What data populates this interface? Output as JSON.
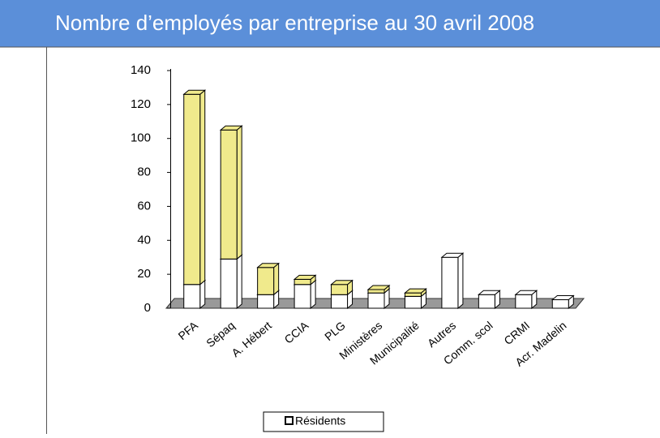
{
  "chart_data": {
    "type": "bar",
    "title": "Nombre d’employés par entreprise au 30 avril 2008",
    "categories": [
      "PFA",
      "Sépaq",
      "A. Hébert",
      "CCIA",
      "PLG",
      "Ministères",
      "Municipalité",
      "Autres",
      "Comm. scol",
      "CRMI",
      "Acr. Madelin"
    ],
    "series": [
      {
        "name": "Résidents",
        "color": "#ffffff",
        "values": [
          14,
          29,
          8,
          14,
          8,
          9,
          7,
          30,
          8,
          8,
          5
        ]
      },
      {
        "color": "#f0ea8c",
        "values": [
          112,
          76,
          16,
          3,
          6,
          2,
          2,
          0,
          0,
          0,
          0
        ]
      }
    ],
    "ylim": [
      0,
      140
    ],
    "yticks": [
      0,
      20,
      40,
      60,
      80,
      100,
      120,
      140
    ],
    "stacked": true
  }
}
